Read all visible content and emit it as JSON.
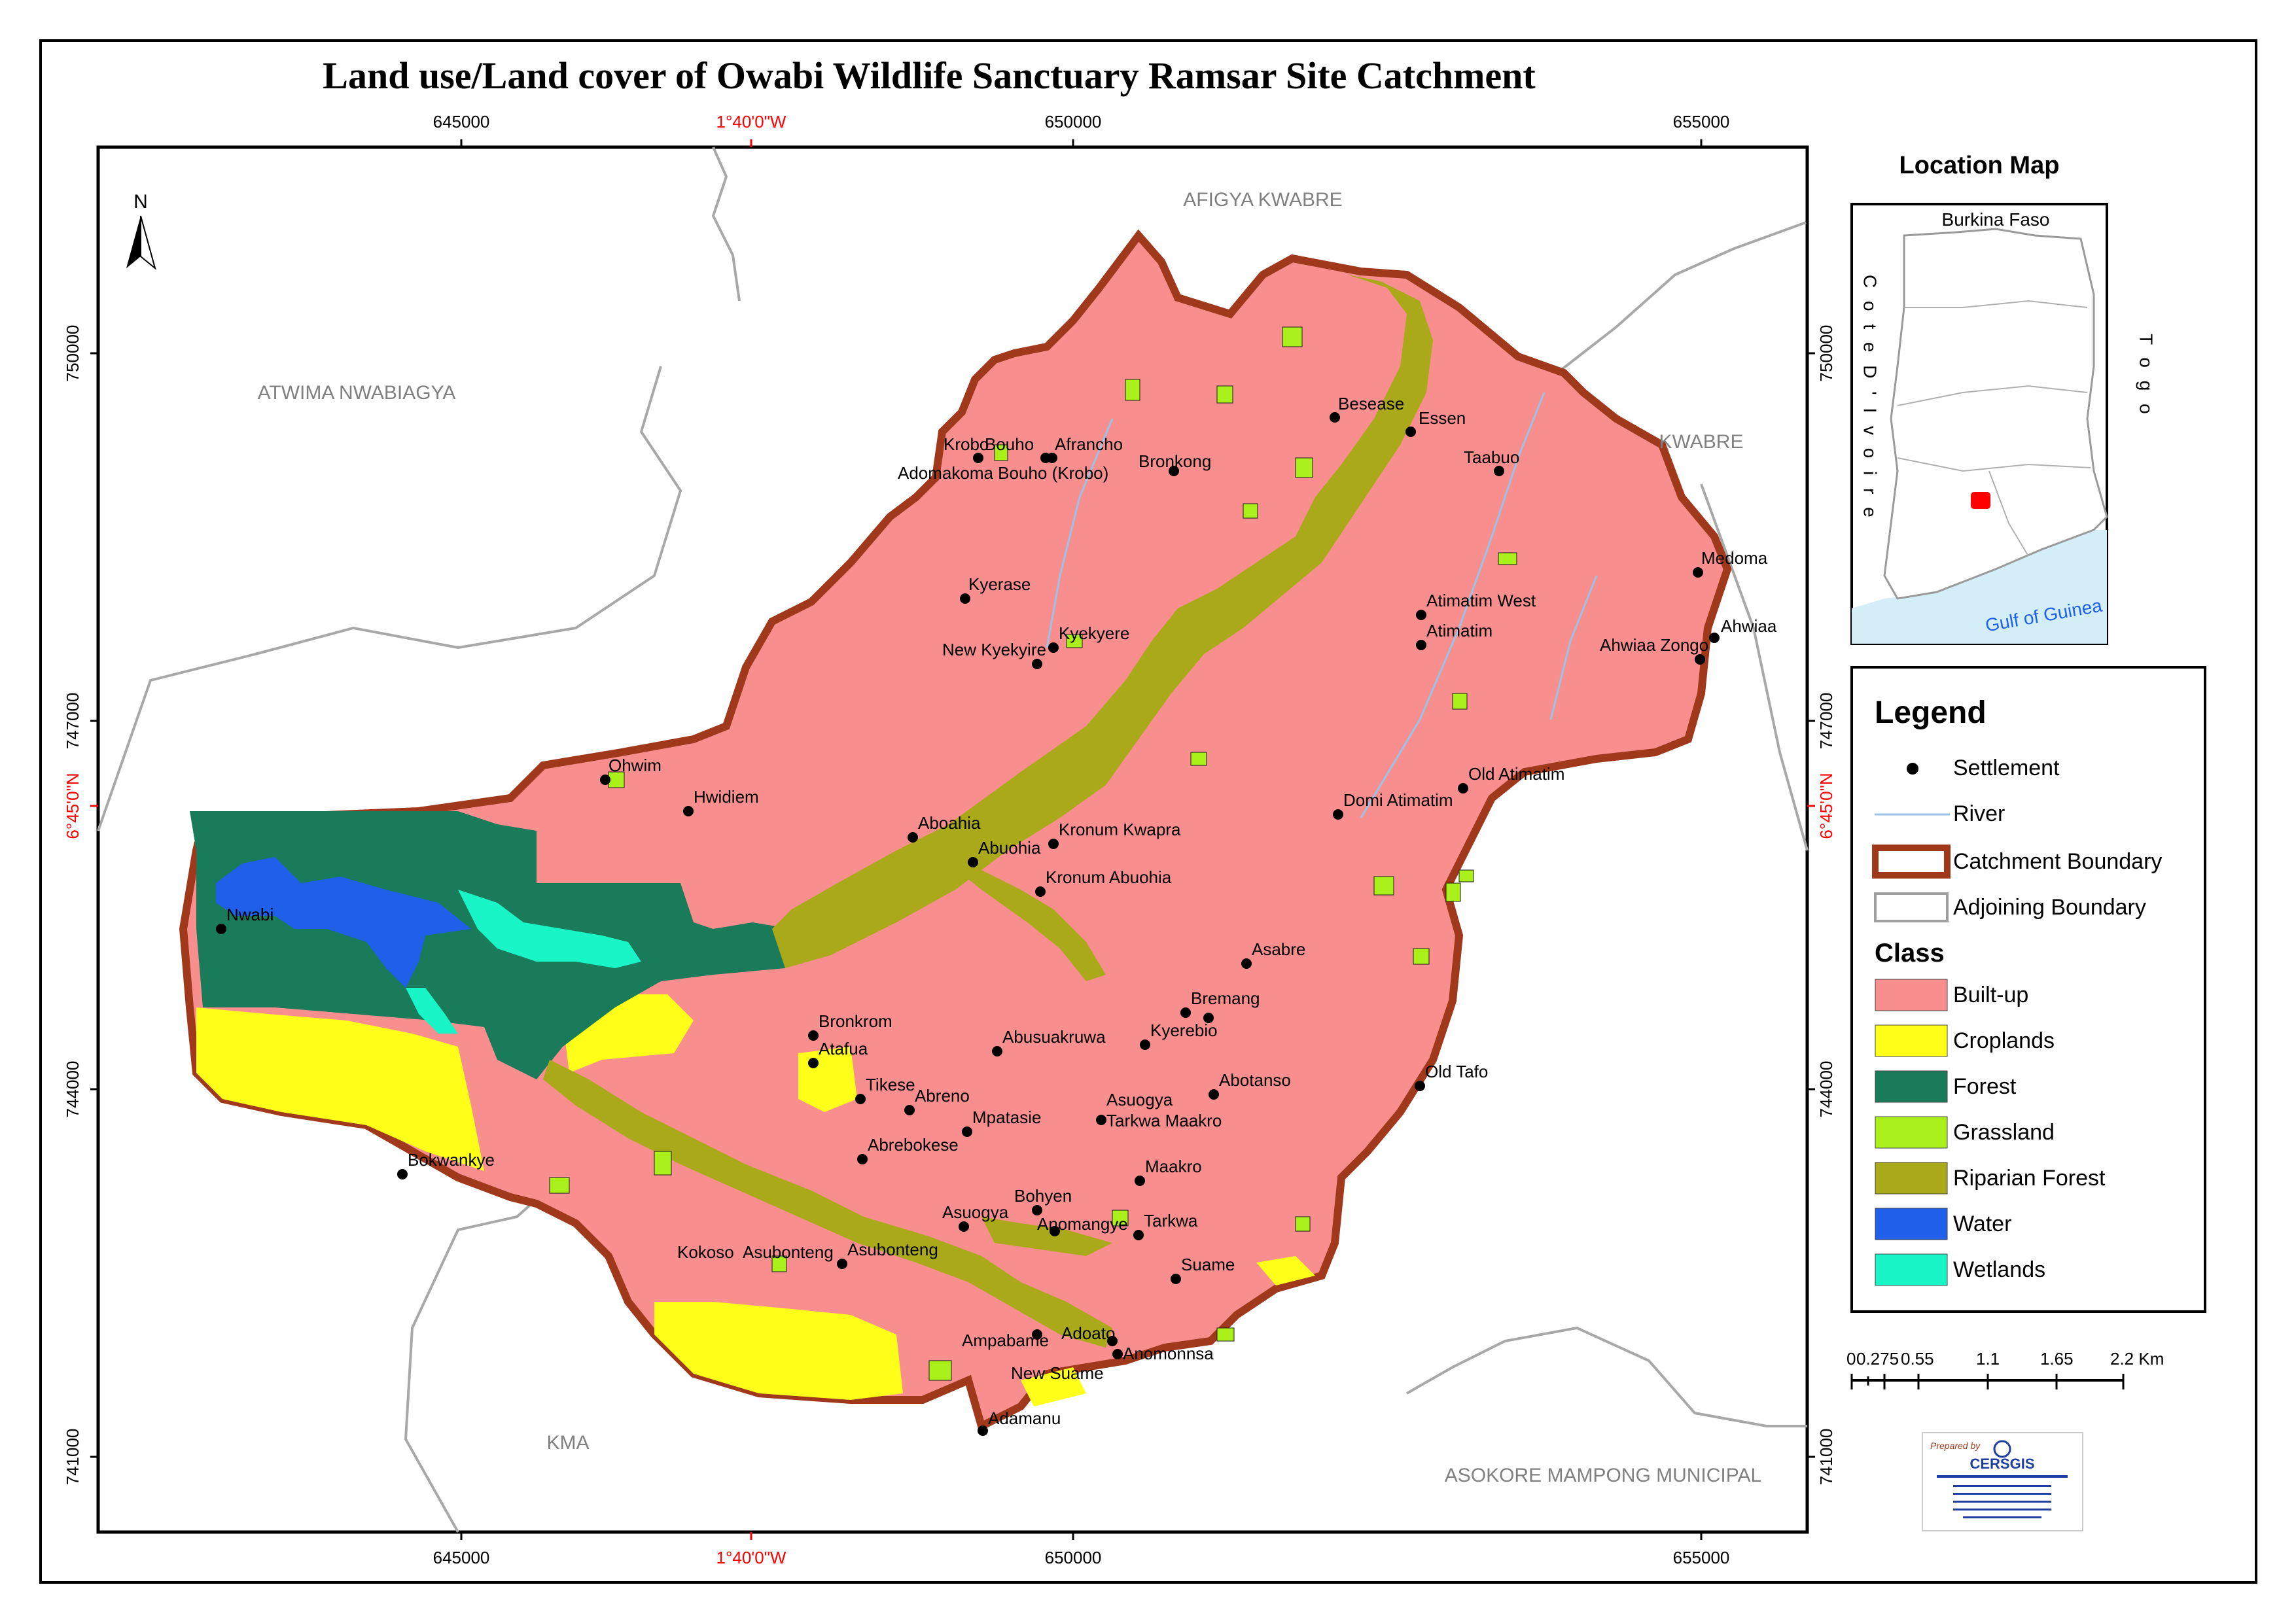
{
  "title": "Land use/Land cover of Owabi Wildlife Sanctuary  Ramsar Site Catchment",
  "grid": {
    "top_ticks": [
      "645000",
      "1°40'0\"W",
      "650000",
      "655000"
    ],
    "bottom_ticks": [
      "645000",
      "1°40'0\"W",
      "650000",
      "655000"
    ],
    "left_ticks": [
      "750000",
      "747000",
      "6°45'0\"N",
      "744000",
      "741000"
    ],
    "right_ticks": [
      "750000",
      "747000",
      "6°45'0\"N",
      "744000",
      "741000"
    ],
    "geo_color": "#ff0000"
  },
  "north_arrow": {
    "label": "N"
  },
  "adjoining": [
    "AFIGYA KWABRE",
    "ATWIMA NWABIAGYA",
    "KWABRE",
    "KMA",
    "ASOKORE MAMPONG MUNICIPAL"
  ],
  "settlements": [
    "Krobo",
    "Bouho",
    "Afrancho",
    "Adomakoma Bouho (Krobo)",
    "Bronkong",
    "Besease",
    "Essen",
    "Taabuo",
    "Medoma",
    "Ahwiaa",
    "Ahwiaa Zongo",
    "Atimatim West",
    "Atimatim",
    "Kyerase",
    "Kyekyere",
    "New Kyekyire",
    "Ohwim",
    "Hwidiem",
    "Old Atimatim",
    "Domi Atimatim",
    "Aboahia",
    "Kronum Kwapra",
    "Abuohia",
    "Kronum Abuohia",
    "Nwabi",
    "Asabre",
    "Bremang",
    "Kyerebio",
    "Bronkrom",
    "Atafua",
    "Abusuakruwa",
    "Old Tafo",
    "Abotanso",
    "Tikese",
    "Abreno",
    "Asuogya",
    "Tarkwa Maakro",
    "Mpatasie",
    "Abrebokese",
    "Bokwankye",
    "Maakro",
    "Bohyen",
    "Asuogya",
    "Anomangye",
    "Tarkwa",
    "Kokoso",
    "Asubonteng",
    "Asubonteng",
    "Suame",
    "Ampabame",
    "Adoato",
    "Anomonnsa",
    "New Suame",
    "Adamanu"
  ],
  "location_map": {
    "title": "Location Map",
    "north": "Burkina Faso",
    "west": "C o t e D ' I v o i r e",
    "east": "T o g o",
    "south": "Gulf of Guinea",
    "site_color": "#ff0000"
  },
  "legend": {
    "title": "Legend",
    "items": [
      {
        "label": "Settlement",
        "kind": "point"
      },
      {
        "label": "River",
        "kind": "line",
        "color": "#9cc3e6"
      },
      {
        "label": "Catchment Boundary",
        "kind": "box",
        "color": "#a0381c"
      },
      {
        "label": "Adjoining Boundary",
        "kind": "box",
        "color": "#a0a0a0"
      }
    ],
    "class_title": "Class",
    "classes": [
      {
        "label": "Built-up",
        "color": "#f88e8e"
      },
      {
        "label": "Croplands",
        "color": "#ffff1a"
      },
      {
        "label": "Forest",
        "color": "#1a7b5a"
      },
      {
        "label": "Grassland",
        "color": "#aaf01a"
      },
      {
        "label": "Riparian Forest",
        "color": "#a9a91a"
      },
      {
        "label": "Water",
        "color": "#1f5fea"
      },
      {
        "label": "Wetlands",
        "color": "#1af5c8"
      }
    ]
  },
  "scale_bar": {
    "labels": [
      "0",
      "0.275",
      "0.55",
      "1.1",
      "1.65",
      "2.2 Km"
    ]
  },
  "credit": {
    "prepared_by": "Prepared by",
    "org": "CERSGIS"
  }
}
